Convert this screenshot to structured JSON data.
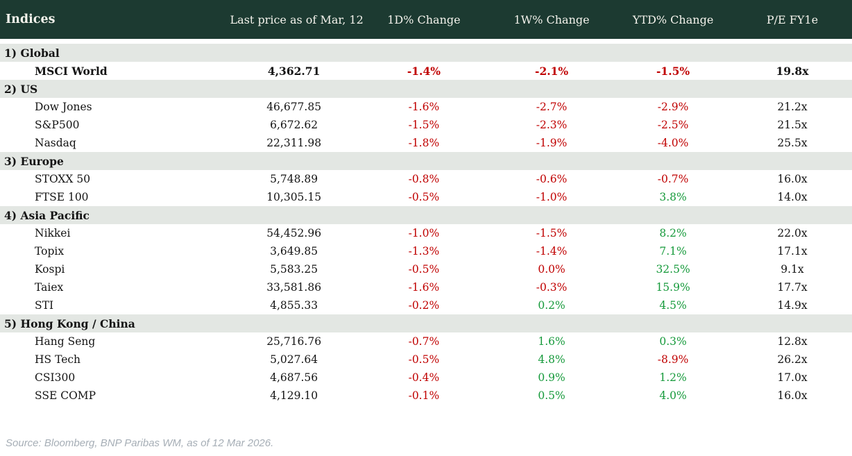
{
  "colors": {
    "header_bg": "#1c3a31",
    "header_text": "#f4f3ec",
    "section_bg": "#e3e7e3",
    "negative": "#c00000",
    "positive": "#169a3b",
    "text": "#141414",
    "source_text": "#a6aeb6"
  },
  "table": {
    "columns": [
      "Indices",
      "Last price as of Mar, 12",
      "1D% Change",
      "1W% Change",
      "YTD% Change",
      "P/E FY1e"
    ],
    "sections": [
      {
        "label": "1) Global",
        "rows": [
          {
            "name": "MSCI World",
            "emphasis": true,
            "price": "4,362.71",
            "changes": [
              {
                "text": "-1.4%",
                "tone": "neg"
              },
              {
                "text": "-2.1%",
                "tone": "neg"
              },
              {
                "text": "-1.5%",
                "tone": "neg"
              }
            ],
            "pe": "19.8x"
          }
        ]
      },
      {
        "label": "2) US",
        "rows": [
          {
            "name": "Dow Jones",
            "emphasis": false,
            "price": "46,677.85",
            "changes": [
              {
                "text": "-1.6%",
                "tone": "neg"
              },
              {
                "text": "-2.7%",
                "tone": "neg"
              },
              {
                "text": "-2.9%",
                "tone": "neg"
              }
            ],
            "pe": "21.2x"
          },
          {
            "name": "S&P500",
            "emphasis": false,
            "price": "6,672.62",
            "changes": [
              {
                "text": "-1.5%",
                "tone": "neg"
              },
              {
                "text": "-2.3%",
                "tone": "neg"
              },
              {
                "text": "-2.5%",
                "tone": "neg"
              }
            ],
            "pe": "21.5x"
          },
          {
            "name": "Nasdaq",
            "emphasis": false,
            "price": "22,311.98",
            "changes": [
              {
                "text": "-1.8%",
                "tone": "neg"
              },
              {
                "text": "-1.9%",
                "tone": "neg"
              },
              {
                "text": "-4.0%",
                "tone": "neg"
              }
            ],
            "pe": "25.5x"
          }
        ]
      },
      {
        "label": "3) Europe",
        "rows": [
          {
            "name": "STOXX 50",
            "emphasis": false,
            "price": "5,748.89",
            "changes": [
              {
                "text": "-0.8%",
                "tone": "neg"
              },
              {
                "text": "-0.6%",
                "tone": "neg"
              },
              {
                "text": "-0.7%",
                "tone": "neg"
              }
            ],
            "pe": "16.0x"
          },
          {
            "name": "FTSE 100",
            "emphasis": false,
            "price": "10,305.15",
            "changes": [
              {
                "text": "-0.5%",
                "tone": "neg"
              },
              {
                "text": "-1.0%",
                "tone": "neg"
              },
              {
                "text": "3.8%",
                "tone": "pos"
              }
            ],
            "pe": "14.0x"
          }
        ]
      },
      {
        "label": "4) Asia Pacific",
        "rows": [
          {
            "name": "Nikkei",
            "emphasis": false,
            "price": "54,452.96",
            "changes": [
              {
                "text": "-1.0%",
                "tone": "neg"
              },
              {
                "text": "-1.5%",
                "tone": "neg"
              },
              {
                "text": "8.2%",
                "tone": "pos"
              }
            ],
            "pe": "22.0x"
          },
          {
            "name": "Topix",
            "emphasis": false,
            "price": "3,649.85",
            "changes": [
              {
                "text": "-1.3%",
                "tone": "neg"
              },
              {
                "text": "-1.4%",
                "tone": "neg"
              },
              {
                "text": "7.1%",
                "tone": "pos"
              }
            ],
            "pe": "17.1x"
          },
          {
            "name": "Kospi",
            "emphasis": false,
            "price": "5,583.25",
            "changes": [
              {
                "text": "-0.5%",
                "tone": "neg"
              },
              {
                "text": "0.0%",
                "tone": "neg"
              },
              {
                "text": "32.5%",
                "tone": "pos"
              }
            ],
            "pe": "9.1x"
          },
          {
            "name": "Taiex",
            "emphasis": false,
            "price": "33,581.86",
            "changes": [
              {
                "text": "-1.6%",
                "tone": "neg"
              },
              {
                "text": "-0.3%",
                "tone": "neg"
              },
              {
                "text": "15.9%",
                "tone": "pos"
              }
            ],
            "pe": "17.7x"
          },
          {
            "name": "STI",
            "emphasis": false,
            "price": "4,855.33",
            "changes": [
              {
                "text": "-0.2%",
                "tone": "neg"
              },
              {
                "text": "0.2%",
                "tone": "pos"
              },
              {
                "text": "4.5%",
                "tone": "pos"
              }
            ],
            "pe": "14.9x"
          }
        ]
      },
      {
        "label": "5) Hong Kong / China",
        "rows": [
          {
            "name": "Hang Seng",
            "emphasis": false,
            "price": "25,716.76",
            "changes": [
              {
                "text": "-0.7%",
                "tone": "neg"
              },
              {
                "text": "1.6%",
                "tone": "pos"
              },
              {
                "text": "0.3%",
                "tone": "pos"
              }
            ],
            "pe": "12.8x"
          },
          {
            "name": "HS Tech",
            "emphasis": false,
            "price": "5,027.64",
            "changes": [
              {
                "text": "-0.5%",
                "tone": "neg"
              },
              {
                "text": "4.8%",
                "tone": "pos"
              },
              {
                "text": "-8.9%",
                "tone": "neg"
              }
            ],
            "pe": "26.2x"
          },
          {
            "name": "CSI300",
            "emphasis": false,
            "price": "4,687.56",
            "changes": [
              {
                "text": "-0.4%",
                "tone": "neg"
              },
              {
                "text": "0.9%",
                "tone": "pos"
              },
              {
                "text": "1.2%",
                "tone": "pos"
              }
            ],
            "pe": "17.0x"
          },
          {
            "name": "SSE COMP",
            "emphasis": false,
            "price": "4,129.10",
            "changes": [
              {
                "text": "-0.1%",
                "tone": "neg"
              },
              {
                "text": "0.5%",
                "tone": "pos"
              },
              {
                "text": "4.0%",
                "tone": "pos"
              }
            ],
            "pe": "16.0x"
          }
        ]
      }
    ]
  },
  "footer": {
    "source": "Source: Bloomberg, BNP Paribas WM, as of 12 Mar 2026."
  },
  "chart_data": {
    "type": "table",
    "title": "Indices",
    "columns": [
      "Indices",
      "Last price as of Mar, 12",
      "1D% Change",
      "1W% Change",
      "YTD% Change",
      "P/E FY1e"
    ],
    "rows": [
      {
        "section": "1) Global",
        "index": "MSCI World",
        "last_price": 4362.71,
        "d1_pct": -1.4,
        "w1_pct": -2.1,
        "ytd_pct": -1.5,
        "pe_fy1e": "19.8x"
      },
      {
        "section": "2) US",
        "index": "Dow Jones",
        "last_price": 46677.85,
        "d1_pct": -1.6,
        "w1_pct": -2.7,
        "ytd_pct": -2.9,
        "pe_fy1e": "21.2x"
      },
      {
        "section": "2) US",
        "index": "S&P500",
        "last_price": 6672.62,
        "d1_pct": -1.5,
        "w1_pct": -2.3,
        "ytd_pct": -2.5,
        "pe_fy1e": "21.5x"
      },
      {
        "section": "2) US",
        "index": "Nasdaq",
        "last_price": 22311.98,
        "d1_pct": -1.8,
        "w1_pct": -1.9,
        "ytd_pct": -4.0,
        "pe_fy1e": "25.5x"
      },
      {
        "section": "3) Europe",
        "index": "STOXX 50",
        "last_price": 5748.89,
        "d1_pct": -0.8,
        "w1_pct": -0.6,
        "ytd_pct": -0.7,
        "pe_fy1e": "16.0x"
      },
      {
        "section": "3) Europe",
        "index": "FTSE 100",
        "last_price": 10305.15,
        "d1_pct": -0.5,
        "w1_pct": -1.0,
        "ytd_pct": 3.8,
        "pe_fy1e": "14.0x"
      },
      {
        "section": "4) Asia Pacific",
        "index": "Nikkei",
        "last_price": 54452.96,
        "d1_pct": -1.0,
        "w1_pct": -1.5,
        "ytd_pct": 8.2,
        "pe_fy1e": "22.0x"
      },
      {
        "section": "4) Asia Pacific",
        "index": "Topix",
        "last_price": 3649.85,
        "d1_pct": -1.3,
        "w1_pct": -1.4,
        "ytd_pct": 7.1,
        "pe_fy1e": "17.1x"
      },
      {
        "section": "4) Asia Pacific",
        "index": "Kospi",
        "last_price": 5583.25,
        "d1_pct": -0.5,
        "w1_pct": 0.0,
        "ytd_pct": 32.5,
        "pe_fy1e": "9.1x"
      },
      {
        "section": "4) Asia Pacific",
        "index": "Taiex",
        "last_price": 33581.86,
        "d1_pct": -1.6,
        "w1_pct": -0.3,
        "ytd_pct": 15.9,
        "pe_fy1e": "17.7x"
      },
      {
        "section": "4) Asia Pacific",
        "index": "STI",
        "last_price": 4855.33,
        "d1_pct": -0.2,
        "w1_pct": 0.2,
        "ytd_pct": 4.5,
        "pe_fy1e": "14.9x"
      },
      {
        "section": "5) Hong Kong / China",
        "index": "Hang Seng",
        "last_price": 25716.76,
        "d1_pct": -0.7,
        "w1_pct": 1.6,
        "ytd_pct": 0.3,
        "pe_fy1e": "12.8x"
      },
      {
        "section": "5) Hong Kong / China",
        "index": "HS Tech",
        "last_price": 5027.64,
        "d1_pct": -0.5,
        "w1_pct": 4.8,
        "ytd_pct": -8.9,
        "pe_fy1e": "26.2x"
      },
      {
        "section": "5) Hong Kong / China",
        "index": "CSI300",
        "last_price": 4687.56,
        "d1_pct": -0.4,
        "w1_pct": 0.9,
        "ytd_pct": 1.2,
        "pe_fy1e": "17.0x"
      },
      {
        "section": "5) Hong Kong / China",
        "index": "SSE COMP",
        "last_price": 4129.1,
        "d1_pct": -0.1,
        "w1_pct": 0.5,
        "ytd_pct": 4.0,
        "pe_fy1e": "16.0x"
      }
    ]
  }
}
